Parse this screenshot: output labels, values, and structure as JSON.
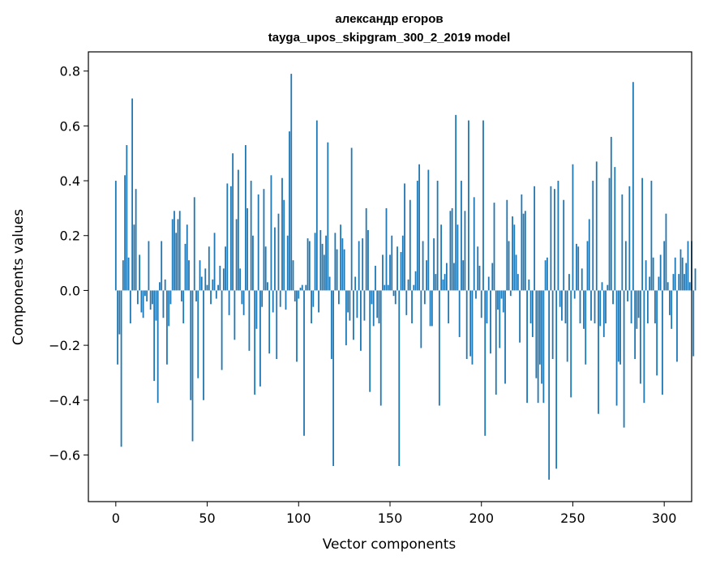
{
  "chart_data": {
    "type": "bar",
    "title": "александр егоров",
    "subtitle": "tayga_upos_skipgram_300_2_2019 model",
    "xlabel": "Vector components",
    "ylabel": "Components values",
    "xlim": [
      -15,
      315
    ],
    "ylim": [
      -0.77,
      0.87
    ],
    "xticks": [
      0,
      50,
      100,
      150,
      200,
      250,
      300
    ],
    "xtick_labels": [
      "0",
      "50",
      "100",
      "150",
      "200",
      "250",
      "300"
    ],
    "yticks": [
      -0.6,
      -0.4,
      -0.2,
      0.0,
      0.2,
      0.4,
      0.6,
      0.8
    ],
    "ytick_labels": [
      "−0.6",
      "−0.4",
      "−0.2",
      "0.0",
      "0.2",
      "0.4",
      "0.6",
      "0.8"
    ],
    "grid": false,
    "bar_color": "#1f77b4",
    "x": "0..299",
    "values": [
      0.4,
      -0.27,
      -0.16,
      -0.57,
      0.11,
      0.42,
      0.53,
      0.12,
      -0.12,
      0.7,
      0.24,
      0.37,
      -0.05,
      0.13,
      -0.08,
      -0.1,
      -0.02,
      -0.04,
      0.18,
      -0.07,
      -0.05,
      -0.33,
      -0.11,
      -0.41,
      0.03,
      0.18,
      -0.1,
      0.04,
      -0.27,
      -0.13,
      -0.05,
      0.26,
      0.29,
      0.21,
      0.26,
      0.29,
      -0.04,
      -0.12,
      0.17,
      0.24,
      0.11,
      -0.4,
      -0.55,
      0.34,
      -0.04,
      -0.32,
      0.11,
      0.05,
      -0.4,
      0.08,
      0.02,
      0.16,
      -0.05,
      0.04,
      0.21,
      -0.03,
      0.02,
      0.09,
      -0.29,
      0.08,
      0.16,
      0.39,
      -0.09,
      0.38,
      0.5,
      -0.18,
      0.26,
      0.44,
      0.08,
      -0.05,
      -0.09,
      0.53,
      0.3,
      -0.22,
      0.4,
      0.2,
      -0.38,
      -0.14,
      0.35,
      -0.35,
      -0.06,
      0.37,
      0.16,
      0.03,
      -0.23,
      0.42,
      -0.08,
      0.23,
      -0.25,
      0.28,
      -0.06,
      0.41,
      0.33,
      -0.07,
      0.2,
      0.58,
      0.79,
      0.11,
      -0.04,
      -0.26,
      -0.03,
      0.01,
      0.02,
      -0.53,
      0.02,
      0.19,
      0.18,
      -0.12,
      -0.06,
      0.21,
      0.62,
      -0.08,
      0.22,
      0.17,
      0.13,
      0.2,
      0.54,
      0.05,
      -0.25,
      -0.64,
      0.21,
      0.15,
      -0.05,
      0.24,
      0.19,
      0.15,
      -0.2,
      -0.08,
      -0.11,
      0.52,
      -0.18,
      0.05,
      -0.1,
      0.18,
      -0.22,
      0.19,
      -0.11,
      0.3,
      0.22,
      -0.37,
      -0.05,
      -0.13,
      0.09,
      -0.1,
      -0.12,
      -0.42,
      0.13,
      0.02,
      0.3,
      0.02,
      0.13,
      0.2,
      -0.02,
      -0.05,
      0.16,
      -0.64,
      0.14,
      0.2,
      0.39,
      -0.09,
      0.04,
      0.33,
      -0.12,
      0.02,
      0.07,
      0.4,
      0.46,
      -0.21,
      0.18,
      -0.05,
      0.11,
      0.44,
      -0.13,
      -0.13,
      0.19,
      0.06,
      0.4,
      -0.42,
      0.24,
      0.04,
      0.06,
      0.1,
      -0.12,
      0.29,
      0.3,
      0.1,
      0.64,
      0.24,
      -0.17,
      0.4,
      0.11,
      0.29,
      -0.25,
      0.62,
      -0.24,
      -0.27,
      0.34,
      -0.03,
      0.16,
      0.09,
      -0.1,
      0.62,
      -0.53,
      -0.12,
      0.05,
      -0.23,
      0.1,
      0.32,
      -0.38,
      -0.07,
      -0.21,
      -0.03,
      -0.08,
      -0.34,
      0.33,
      0.18,
      -0.02,
      0.27,
      0.24,
      0.13,
      0.06,
      -0.19,
      0.35,
      0.28,
      0.29,
      -0.41,
      0.04,
      -0.12,
      -0.17,
      0.38,
      -0.32,
      -0.41,
      -0.27,
      -0.34,
      -0.41,
      0.11,
      0.12,
      -0.69,
      0.38,
      -0.25,
      0.37,
      -0.65,
      0.4,
      -0.06,
      -0.11,
      0.33,
      -0.12,
      -0.26,
      0.06,
      -0.39,
      0.46,
      -0.03,
      0.17,
      0.16,
      -0.12,
      0.08,
      -0.14,
      -0.27,
      0.18,
      0.26,
      -0.11,
      0.4,
      -0.12,
      0.47,
      -0.45,
      -0.13,
      0.03,
      -0.17,
      -0.12,
      0.02,
      0.41,
      0.56,
      -0.05,
      0.45,
      -0.42,
      -0.26,
      -0.27,
      0.35,
      -0.5,
      0.18,
      -0.04,
      0.38,
      -0.12,
      0.76,
      -0.25,
      -0.14,
      -0.1,
      -0.34,
      0.41,
      -0.41,
      0.11,
      -0.12,
      0.05,
      0.4,
      0.12,
      -0.12,
      -0.31,
      0.05,
      0.13,
      -0.38,
      0.18,
      0.28,
      0.03,
      -0.09,
      -0.14,
      0.06,
      0.12,
      -0.26,
      0.06,
      0.15,
      0.12,
      0.06,
      0.1,
      0.18,
      0.03,
      0.18,
      -0.24,
      0.08
    ]
  }
}
